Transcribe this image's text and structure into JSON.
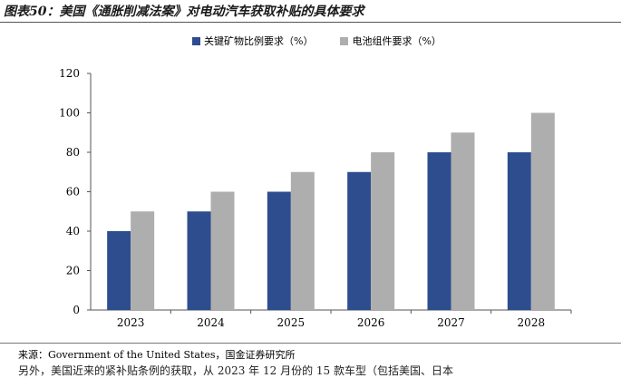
{
  "figure_title": "图表50：美国《通胀削减法案》对电动汽车获取补贴的具体要求",
  "source": "来源：Government of the United States，国金证券研究所",
  "truncated_line": "另外，美国近来的紧补贴条例的获取，从 2023 年 12 月份的 15 款车型（包括美国、日本",
  "colors": {
    "series1": "#2e4d8f",
    "series2": "#aeaeae",
    "axis": "#555555"
  },
  "chart_data": {
    "type": "bar",
    "categories": [
      "2023",
      "2024",
      "2025",
      "2026",
      "2027",
      "2028"
    ],
    "series": [
      {
        "name": "关键矿物比例要求（%）",
        "values": [
          40,
          50,
          60,
          70,
          80,
          80
        ]
      },
      {
        "name": "电池组件要求（%）",
        "values": [
          50,
          60,
          70,
          80,
          90,
          100
        ]
      }
    ],
    "ylim": [
      0,
      120
    ],
    "yticks": [
      "0",
      "20",
      "40",
      "60",
      "80",
      "100",
      "120"
    ],
    "grid": false,
    "legend": "top"
  }
}
